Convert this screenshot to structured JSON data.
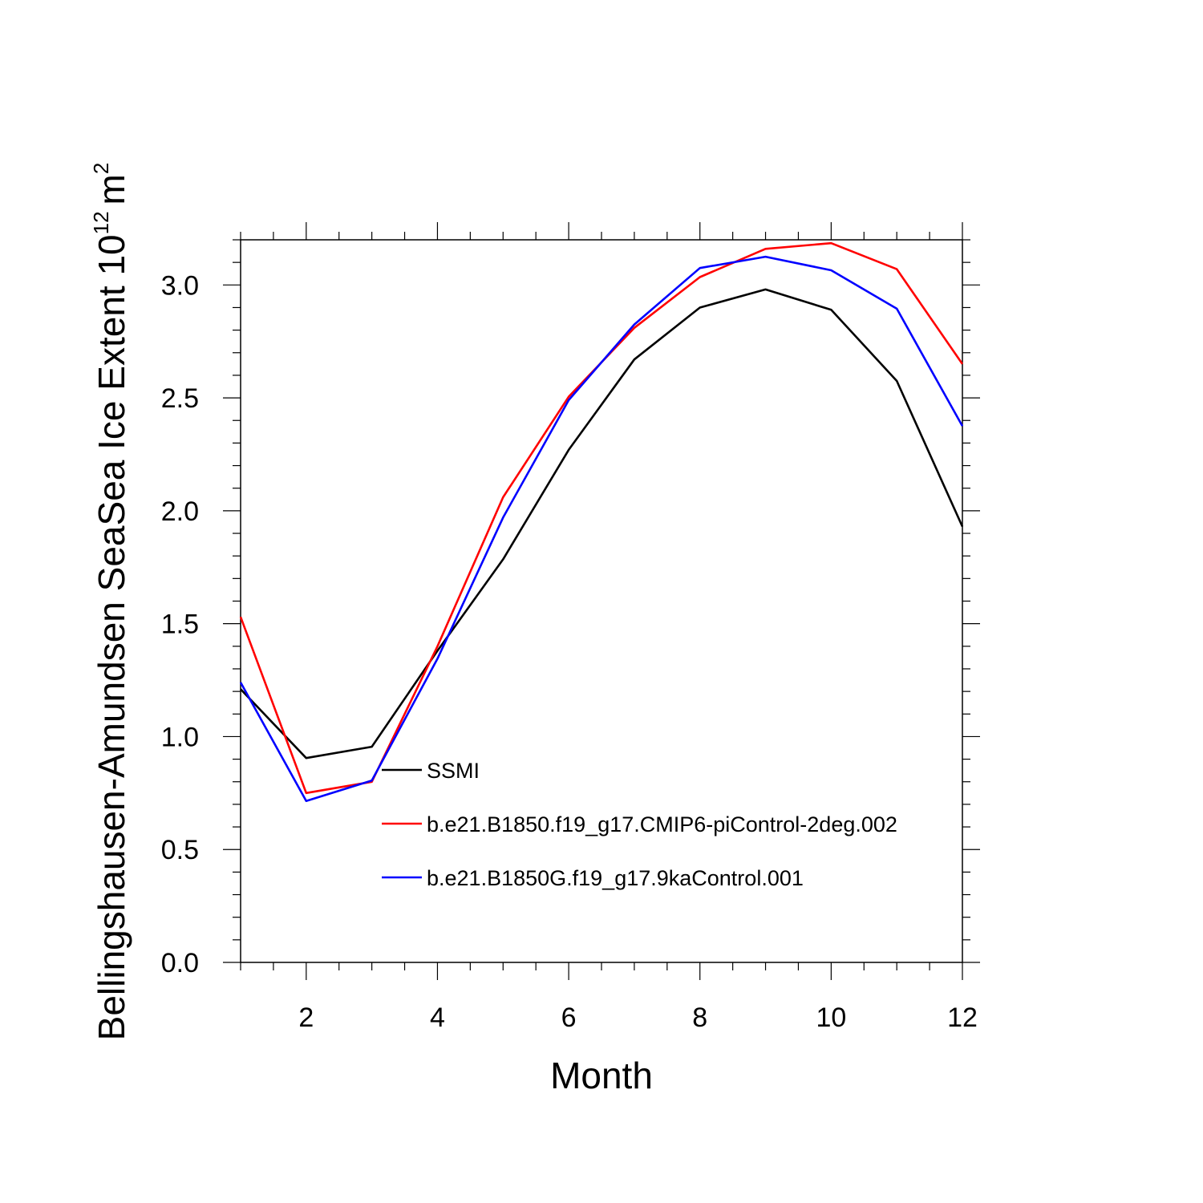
{
  "chart_data": {
    "type": "line",
    "x": [
      1,
      2,
      3,
      4,
      5,
      6,
      7,
      8,
      9,
      10,
      11,
      12
    ],
    "series": [
      {
        "name": "SSMI",
        "color": "#000000",
        "values": [
          1.21,
          0.905,
          0.955,
          1.38,
          1.785,
          2.27,
          2.67,
          2.9,
          2.98,
          2.89,
          2.575,
          1.93
        ]
      },
      {
        "name": "b.e21.B1850.f19_g17.CMIP6-piControl-2deg.002",
        "color": "#ff0000",
        "values": [
          1.53,
          0.75,
          0.8,
          1.4,
          2.06,
          2.505,
          2.81,
          3.035,
          3.16,
          3.185,
          3.07,
          2.65
        ]
      },
      {
        "name": "b.e21.B1850G.f19_g17.9kaControl.001",
        "color": "#0000ff",
        "values": [
          1.24,
          0.715,
          0.805,
          1.345,
          1.97,
          2.49,
          2.825,
          3.075,
          3.125,
          3.065,
          2.895,
          2.375
        ]
      }
    ],
    "xlabel": "Month",
    "ylabel": "Bellingshausen-Amundsen SeaSea Ice Extent 10",
    "ylabel_exponent": "12",
    "ylabel_unit": "m",
    "ylabel_unit_exponent": "2",
    "xlim": [
      1,
      12
    ],
    "ylim": [
      0,
      3.2
    ],
    "xticks": [
      2,
      4,
      6,
      8,
      10,
      12
    ],
    "xtick_labels": [
      "2",
      "4",
      "6",
      "8",
      "10",
      "12"
    ],
    "yticks": [
      0,
      0.5,
      1,
      1.5,
      2,
      2.5,
      3
    ],
    "ytick_labels": [
      "0.0",
      "0.5",
      "1.0",
      "1.5",
      "2.0",
      "2.5",
      "3.0"
    ],
    "legend_position": "lower-center inside plot",
    "grid": false
  }
}
